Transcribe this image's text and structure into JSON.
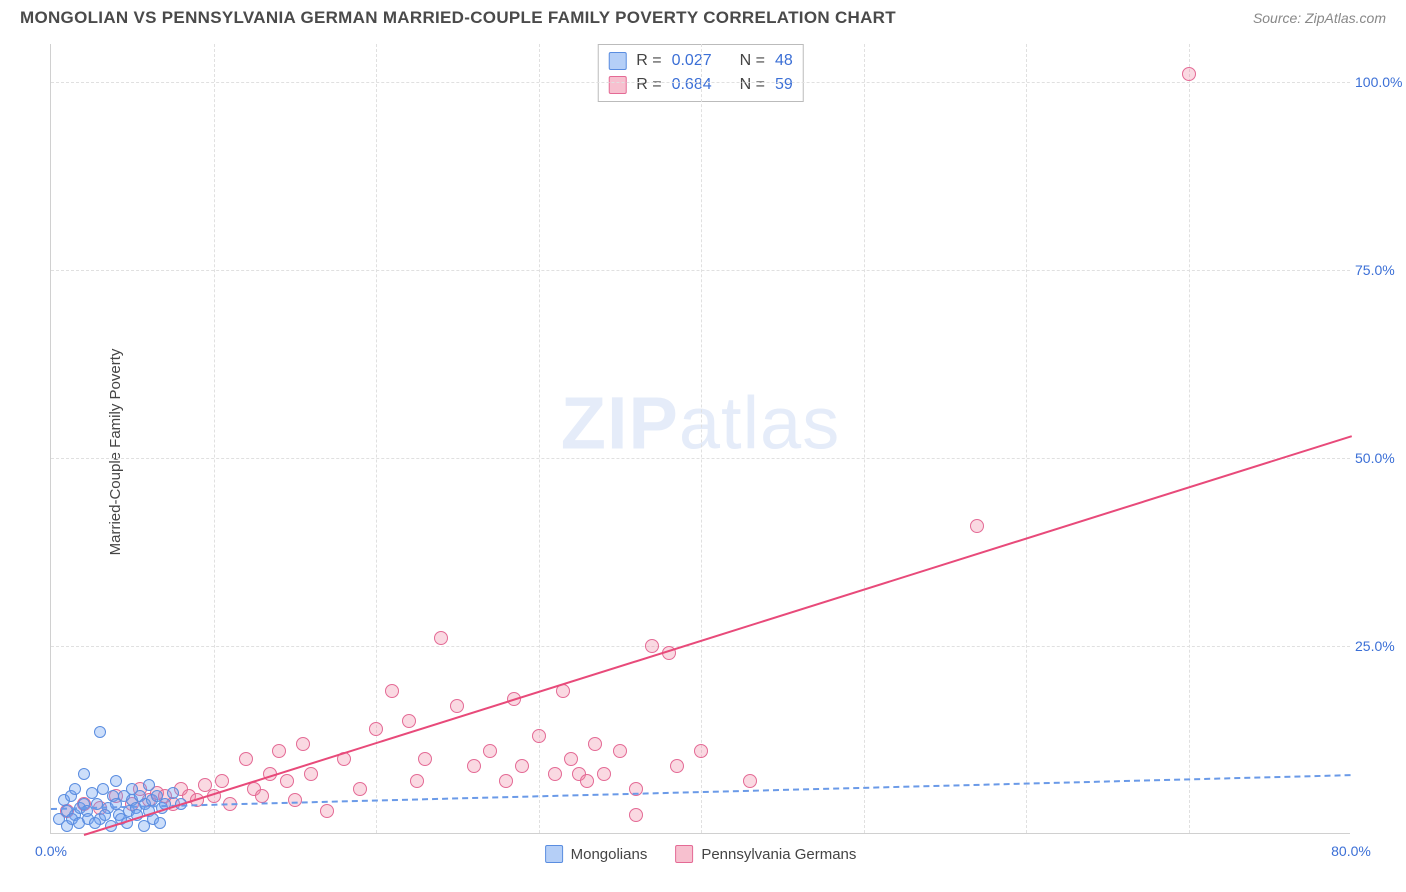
{
  "header": {
    "title": "MONGOLIAN VS PENNSYLVANIA GERMAN MARRIED-COUPLE FAMILY POVERTY CORRELATION CHART",
    "source_label": "Source:",
    "source_name": "ZipAtlas.com"
  },
  "axes": {
    "y_title": "Married-Couple Family Poverty",
    "x_min": 0,
    "x_max": 80,
    "y_min": 0,
    "y_max": 105,
    "x_ticks": [
      {
        "v": 0,
        "l": "0.0%"
      },
      {
        "v": 80,
        "l": "80.0%"
      }
    ],
    "y_ticks": [
      {
        "v": 25,
        "l": "25.0%"
      },
      {
        "v": 50,
        "l": "50.0%"
      },
      {
        "v": 75,
        "l": "75.0%"
      },
      {
        "v": 100,
        "l": "100.0%"
      }
    ],
    "grid_v": [
      10,
      20,
      30,
      40,
      50,
      60,
      70
    ]
  },
  "watermark": {
    "bold": "ZIP",
    "light": "atlas"
  },
  "stats": {
    "series": [
      {
        "swatch": "blue",
        "r_label": "R =",
        "r": "0.027",
        "n_label": "N =",
        "n": "48"
      },
      {
        "swatch": "pink",
        "r_label": "R =",
        "r": "0.684",
        "n_label": "N =",
        "n": "59"
      }
    ]
  },
  "legend": {
    "items": [
      {
        "swatch": "blue",
        "label": "Mongolians"
      },
      {
        "swatch": "pink",
        "label": "Pennsylvania Germans"
      }
    ]
  },
  "series_blue": {
    "color": "#6ca0f0",
    "marker_size": 12,
    "points": [
      [
        0.5,
        2.0
      ],
      [
        0.8,
        4.5
      ],
      [
        1.0,
        3.0
      ],
      [
        1.2,
        5.0
      ],
      [
        1.5,
        2.5
      ],
      [
        1.5,
        6.0
      ],
      [
        1.8,
        3.5
      ],
      [
        2.0,
        4.0
      ],
      [
        2.0,
        8.0
      ],
      [
        2.2,
        3.0
      ],
      [
        2.5,
        5.5
      ],
      [
        2.8,
        4.0
      ],
      [
        3.0,
        2.0
      ],
      [
        3.0,
        13.5
      ],
      [
        3.2,
        6.0
      ],
      [
        3.5,
        3.5
      ],
      [
        3.8,
        5.0
      ],
      [
        4.0,
        4.0
      ],
      [
        4.0,
        7.0
      ],
      [
        4.2,
        2.5
      ],
      [
        4.5,
        5.0
      ],
      [
        4.8,
        3.0
      ],
      [
        5.0,
        6.0
      ],
      [
        5.0,
        4.5
      ],
      [
        5.2,
        3.5
      ],
      [
        5.5,
        5.0
      ],
      [
        5.8,
        4.0
      ],
      [
        6.0,
        3.0
      ],
      [
        6.0,
        6.5
      ],
      [
        6.2,
        4.5
      ],
      [
        6.5,
        5.0
      ],
      [
        6.8,
        3.5
      ],
      [
        7.0,
        4.0
      ],
      [
        7.5,
        5.5
      ],
      [
        8.0,
        4.0
      ],
      [
        1.0,
        1.0
      ],
      [
        1.3,
        2.0
      ],
      [
        1.7,
        1.5
      ],
      [
        2.3,
        2.0
      ],
      [
        2.7,
        1.5
      ],
      [
        3.3,
        2.5
      ],
      [
        3.7,
        1.0
      ],
      [
        4.3,
        2.0
      ],
      [
        4.7,
        1.5
      ],
      [
        5.3,
        2.5
      ],
      [
        5.7,
        1.0
      ],
      [
        6.3,
        2.0
      ],
      [
        6.7,
        1.5
      ]
    ],
    "trend": {
      "x1": 0,
      "y1": 3.5,
      "x2": 80,
      "y2": 8.0
    }
  },
  "series_pink": {
    "color": "#f082a0",
    "marker_size": 14,
    "points": [
      [
        1.0,
        3.0
      ],
      [
        2.0,
        4.0
      ],
      [
        3.0,
        3.5
      ],
      [
        4.0,
        5.0
      ],
      [
        5.0,
        4.0
      ],
      [
        5.5,
        6.0
      ],
      [
        6.0,
        4.5
      ],
      [
        6.5,
        5.5
      ],
      [
        7.0,
        5.0
      ],
      [
        7.5,
        4.0
      ],
      [
        8.0,
        6.0
      ],
      [
        8.5,
        5.0
      ],
      [
        9.0,
        4.5
      ],
      [
        9.5,
        6.5
      ],
      [
        10.0,
        5.0
      ],
      [
        10.5,
        7.0
      ],
      [
        11.0,
        4.0
      ],
      [
        12.0,
        10.0
      ],
      [
        12.5,
        6.0
      ],
      [
        13.0,
        5.0
      ],
      [
        14.0,
        11.0
      ],
      [
        14.5,
        7.0
      ],
      [
        15.0,
        4.5
      ],
      [
        16.0,
        8.0
      ],
      [
        17.0,
        3.0
      ],
      [
        18.0,
        10.0
      ],
      [
        19.0,
        6.0
      ],
      [
        20.0,
        14.0
      ],
      [
        21.0,
        19.0
      ],
      [
        22.0,
        15.0
      ],
      [
        22.5,
        7.0
      ],
      [
        23.0,
        10.0
      ],
      [
        24.0,
        26.0
      ],
      [
        25.0,
        17.0
      ],
      [
        26.0,
        9.0
      ],
      [
        27.0,
        11.0
      ],
      [
        28.0,
        7.0
      ],
      [
        28.5,
        18.0
      ],
      [
        29.0,
        9.0
      ],
      [
        30.0,
        13.0
      ],
      [
        31.0,
        8.0
      ],
      [
        31.5,
        19.0
      ],
      [
        32.0,
        10.0
      ],
      [
        32.5,
        8.0
      ],
      [
        33.0,
        7.0
      ],
      [
        33.5,
        12.0
      ],
      [
        34.0,
        8.0
      ],
      [
        35.0,
        11.0
      ],
      [
        36.0,
        6.0
      ],
      [
        37.0,
        25.0
      ],
      [
        38.0,
        24.0
      ],
      [
        40.0,
        11.0
      ],
      [
        38.5,
        9.0
      ],
      [
        43.0,
        7.0
      ],
      [
        36.0,
        2.5
      ],
      [
        57.0,
        41.0
      ],
      [
        70.0,
        101.0
      ],
      [
        15.5,
        12.0
      ],
      [
        13.5,
        8.0
      ]
    ],
    "trend": {
      "x1": 2,
      "y1": 0,
      "x2": 80,
      "y2": 53
    }
  },
  "style": {
    "background": "#ffffff",
    "grid_color": "#e0e0e0",
    "axis_color": "#d0d0d0",
    "blue": "#6ca0f0",
    "pink": "#e84a7a",
    "tick_label_color": "#3b6fd6",
    "title_color": "#4a4a4a",
    "title_fontsize": 17,
    "tick_fontsize": 14
  }
}
